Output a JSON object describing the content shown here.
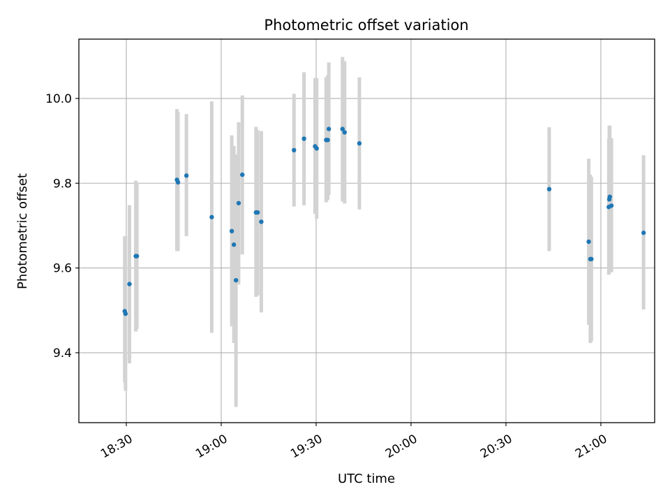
{
  "chart_data": {
    "type": "scatter",
    "title": "Photometric offset variation",
    "xlabel": "UTC time",
    "ylabel": "Photometric offset",
    "xlim": [
      "18:15",
      "21:17"
    ],
    "ylim": [
      9.235,
      10.14
    ],
    "x_ticks": [
      "18:30",
      "19:00",
      "19:30",
      "20:00",
      "20:30",
      "21:00"
    ],
    "y_ticks": [
      9.4,
      9.6,
      9.8,
      10.0
    ],
    "y_tick_labels": [
      "9.4",
      "9.6",
      "9.8",
      "10.0"
    ],
    "grid": true,
    "colors": {
      "points": "#1f77b4",
      "error_bars": "#d3d3d3",
      "grid": "#b0b0b0"
    },
    "points": [
      {
        "x": "18:29:30",
        "y": 9.498,
        "err_low": 9.33,
        "err_high": 9.675
      },
      {
        "x": "18:29:45",
        "y": 9.492,
        "err_low": 9.31,
        "err_high": 9.675
      },
      {
        "x": "18:31:00",
        "y": 9.562,
        "err_low": 9.375,
        "err_high": 9.748
      },
      {
        "x": "18:33:00",
        "y": 9.628,
        "err_low": 9.45,
        "err_high": 9.806
      },
      {
        "x": "18:33:20",
        "y": 9.628,
        "err_low": 9.456,
        "err_high": 9.8
      },
      {
        "x": "18:46:00",
        "y": 9.808,
        "err_low": 9.64,
        "err_high": 9.975
      },
      {
        "x": "18:46:20",
        "y": 9.802,
        "err_low": 9.64,
        "err_high": 9.968
      },
      {
        "x": "18:49:00",
        "y": 9.818,
        "err_low": 9.675,
        "err_high": 9.963
      },
      {
        "x": "18:57:00",
        "y": 9.72,
        "err_low": 9.447,
        "err_high": 9.993
      },
      {
        "x": "19:03:20",
        "y": 9.687,
        "err_low": 9.462,
        "err_high": 9.913
      },
      {
        "x": "19:04:00",
        "y": 9.655,
        "err_low": 9.423,
        "err_high": 9.888
      },
      {
        "x": "19:04:40",
        "y": 9.571,
        "err_low": 9.272,
        "err_high": 9.868
      },
      {
        "x": "19:05:30",
        "y": 9.753,
        "err_low": 9.561,
        "err_high": 9.944
      },
      {
        "x": "19:06:40",
        "y": 9.82,
        "err_low": 9.632,
        "err_high": 10.007
      },
      {
        "x": "19:11:00",
        "y": 9.731,
        "err_low": 9.532,
        "err_high": 9.933
      },
      {
        "x": "19:11:30",
        "y": 9.731,
        "err_low": 9.535,
        "err_high": 9.925
      },
      {
        "x": "19:12:40",
        "y": 9.709,
        "err_low": 9.495,
        "err_high": 9.923
      },
      {
        "x": "19:23:00",
        "y": 9.878,
        "err_low": 9.745,
        "err_high": 10.011
      },
      {
        "x": "19:26:10",
        "y": 9.905,
        "err_low": 9.748,
        "err_high": 10.062
      },
      {
        "x": "19:29:40",
        "y": 9.887,
        "err_low": 9.728,
        "err_high": 10.048
      },
      {
        "x": "19:30:10",
        "y": 9.882,
        "err_low": 9.716,
        "err_high": 10.048
      },
      {
        "x": "19:33:10",
        "y": 9.902,
        "err_low": 9.755,
        "err_high": 10.05
      },
      {
        "x": "19:33:40",
        "y": 9.902,
        "err_low": 9.76,
        "err_high": 10.055
      },
      {
        "x": "19:34:00",
        "y": 9.928,
        "err_low": 9.772,
        "err_high": 10.085
      },
      {
        "x": "19:38:20",
        "y": 9.928,
        "err_low": 9.757,
        "err_high": 10.098
      },
      {
        "x": "19:39:00",
        "y": 9.92,
        "err_low": 9.752,
        "err_high": 10.088
      },
      {
        "x": "19:43:40",
        "y": 9.894,
        "err_low": 9.738,
        "err_high": 10.05
      },
      {
        "x": "20:43:40",
        "y": 9.786,
        "err_low": 9.64,
        "err_high": 9.932
      },
      {
        "x": "20:56:10",
        "y": 9.662,
        "err_low": 9.466,
        "err_high": 9.858
      },
      {
        "x": "20:56:40",
        "y": 9.621,
        "err_low": 9.423,
        "err_high": 9.82
      },
      {
        "x": "20:57:00",
        "y": 9.621,
        "err_low": 9.427,
        "err_high": 9.815
      },
      {
        "x": "21:02:30",
        "y": 9.744,
        "err_low": 9.584,
        "err_high": 9.905
      },
      {
        "x": "21:02:40",
        "y": 9.762,
        "err_low": 9.588,
        "err_high": 9.936
      },
      {
        "x": "21:02:50",
        "y": 9.768,
        "err_low": 9.593,
        "err_high": 9.936
      },
      {
        "x": "21:03:20",
        "y": 9.747,
        "err_low": 9.59,
        "err_high": 9.906
      },
      {
        "x": "21:13:30",
        "y": 9.683,
        "err_low": 9.502,
        "err_high": 9.866
      }
    ]
  }
}
